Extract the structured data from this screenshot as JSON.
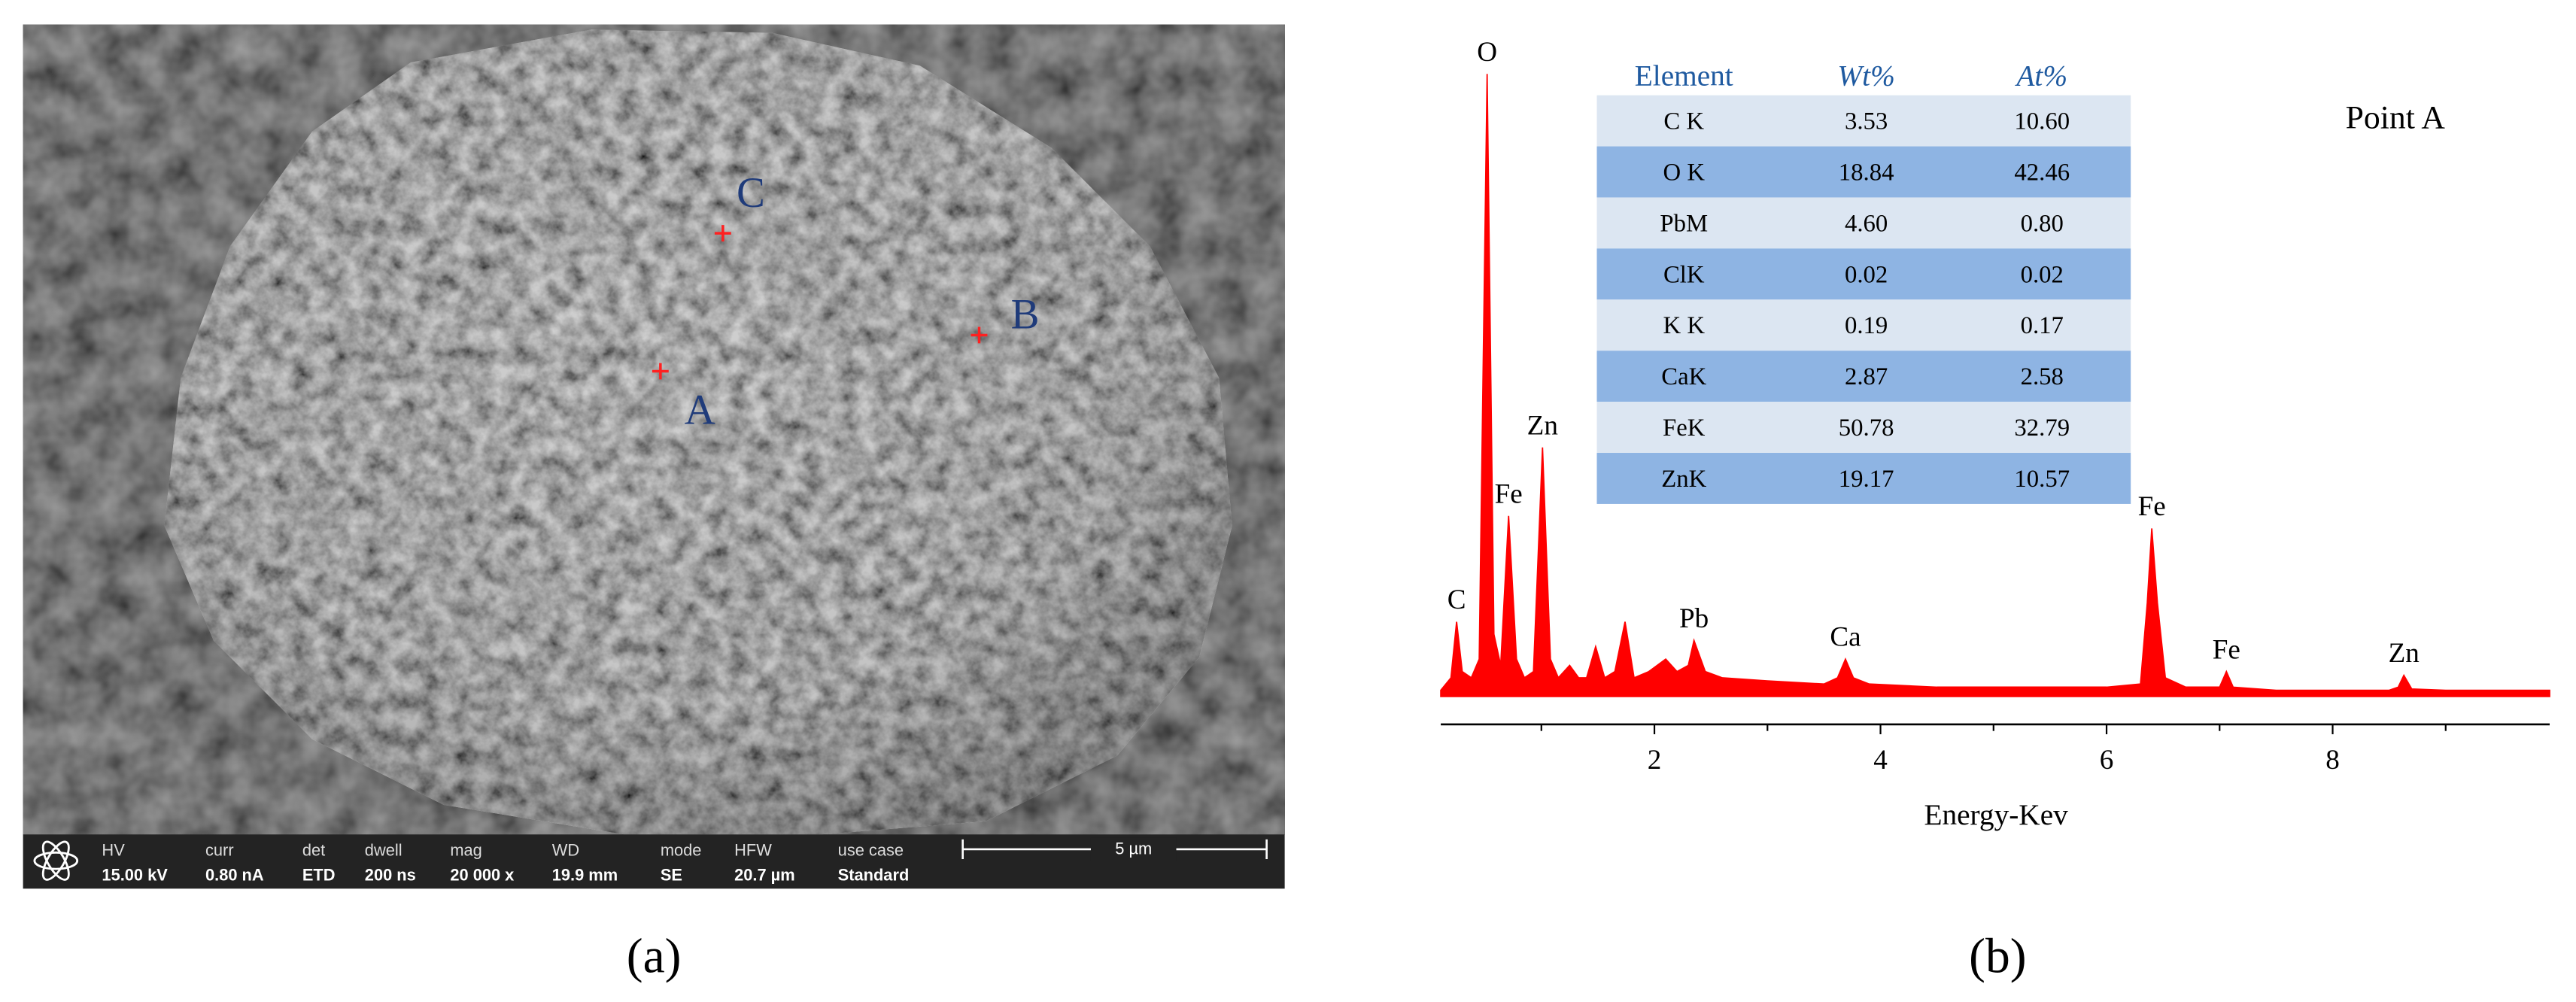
{
  "panel_a": {
    "points": [
      "A",
      "B",
      "C"
    ],
    "info_bar": [
      {
        "label": "HV",
        "value": "15.00 kV"
      },
      {
        "label": "curr",
        "value": "0.80 nA"
      },
      {
        "label": "det",
        "value": "ETD"
      },
      {
        "label": "dwell",
        "value": "200 ns"
      },
      {
        "label": "mag",
        "value": "20 000 x"
      },
      {
        "label": "WD",
        "value": "19.9 mm"
      },
      {
        "label": "mode",
        "value": "SE"
      },
      {
        "label": "HFW",
        "value": "20.7 µm"
      },
      {
        "label": "use case",
        "value": "Standard"
      }
    ],
    "scale_bar": "5 µm"
  },
  "chart_data": {
    "type": "spectrum",
    "title": "Point A",
    "xlabel": "Energy-Kev",
    "x": [
      0.11,
      0.2,
      0.25,
      0.3,
      0.38,
      0.45,
      0.52,
      0.58,
      0.64,
      0.71,
      0.78,
      0.85,
      0.93,
      1.01,
      1.08,
      1.15,
      1.25,
      1.33,
      1.4,
      1.48,
      1.56,
      1.65,
      1.74,
      1.82,
      1.95,
      2.1,
      2.2,
      2.3,
      2.35,
      2.45,
      2.6,
      3.0,
      3.5,
      3.62,
      3.69,
      3.76,
      3.9,
      4.5,
      5.0,
      5.5,
      6.0,
      6.3,
      6.36,
      6.4,
      6.45,
      6.52,
      6.7,
      7.0,
      7.06,
      7.12,
      7.5,
      8.0,
      8.5,
      8.58,
      8.63,
      8.7,
      9.0,
      9.5,
      9.92
    ],
    "series": [
      {
        "color": "#ff0000",
        "values": [
          1,
          3,
          12,
          4,
          3,
          6,
          100,
          10,
          5,
          29,
          6,
          3,
          4,
          40,
          6,
          3,
          5,
          3,
          3,
          8,
          3,
          4,
          12,
          3,
          4,
          6,
          4,
          5,
          9,
          4,
          3,
          2.5,
          2,
          3,
          6,
          3,
          2,
          1.5,
          1.5,
          1.5,
          1.5,
          2,
          15,
          27,
          15,
          3,
          1.5,
          1.5,
          4,
          1.5,
          1,
          1,
          1,
          1.5,
          3.4,
          1.2,
          1,
          1,
          1
        ]
      }
    ],
    "xlim": [
      0.11,
      9.92
    ],
    "ylim": [
      0,
      100
    ],
    "xticks": [
      2,
      4,
      6,
      8
    ],
    "xminor": [
      1,
      3,
      5,
      7,
      9
    ],
    "annotations": [
      {
        "text": "C",
        "x": 0.25
      },
      {
        "text": "O",
        "x": 0.52
      },
      {
        "text": "Fe",
        "x": 0.71
      },
      {
        "text": "Zn",
        "x": 1.01
      },
      {
        "text": "Pb",
        "x": 2.35
      },
      {
        "text": "Ca",
        "x": 3.69
      },
      {
        "text": "Fe",
        "x": 6.4
      },
      {
        "text": "Fe",
        "x": 7.06
      },
      {
        "text": "Zn",
        "x": 8.63
      }
    ],
    "table": {
      "header": [
        "Element",
        "Wt%",
        "At%"
      ],
      "rows": [
        [
          "C K",
          "3.53",
          "10.60"
        ],
        [
          "O K",
          "18.84",
          "42.46"
        ],
        [
          "PbM",
          "4.60",
          "0.80"
        ],
        [
          "ClK",
          "0.02",
          "0.02"
        ],
        [
          "K K",
          "0.19",
          "0.17"
        ],
        [
          "CaK",
          "2.87",
          "2.58"
        ],
        [
          "FeK",
          "50.78",
          "32.79"
        ],
        [
          "ZnK",
          "19.17",
          "10.57"
        ]
      ]
    }
  },
  "captions": [
    "(a)",
    "(b)"
  ]
}
